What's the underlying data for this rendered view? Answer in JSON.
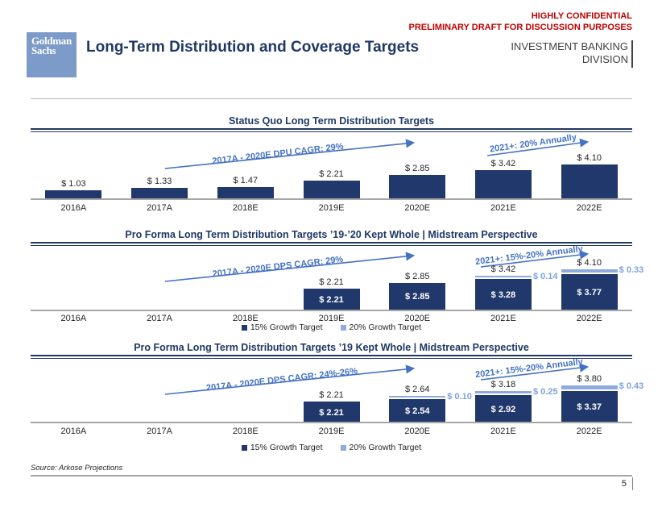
{
  "header": {
    "confidential_line1": "HIGHLY CONFIDENTIAL",
    "confidential_line2": "PRELIMINARY DRAFT FOR DISCUSSION PURPOSES",
    "logo_line1": "Goldman",
    "logo_line2": "Sachs",
    "title": "Long-Term Distribution and Coverage Targets",
    "division_line1": "INVESTMENT BANKING",
    "division_line2": "DIVISION"
  },
  "colors": {
    "navy": "#1F3864",
    "bar_dark": "#20386B",
    "bar_light": "#8FAADC",
    "annotation_blue": "#4472C4",
    "confidential_red": "#C00000",
    "logo_blue": "#7C9BC8",
    "axis_gray": "#A6A6A6"
  },
  "chart_data": [
    {
      "type": "bar",
      "title": "Status Quo Long Term Distribution Targets",
      "categories": [
        "2016A",
        "2017A",
        "2018E",
        "2019E",
        "2020E",
        "2021E",
        "2022E"
      ],
      "values": [
        1.03,
        1.33,
        1.47,
        2.21,
        2.85,
        3.42,
        4.1
      ],
      "value_labels": [
        "$ 1.03",
        "$ 1.33",
        "$ 1.47",
        "$ 2.21",
        "$ 2.85",
        "$ 3.42",
        "$ 4.10"
      ],
      "annotations": [
        "2017A - 2020E DPU CAGR: 29%",
        "2021+: 20% Annually"
      ],
      "xlabel": "",
      "ylabel": "",
      "ylim": [
        0,
        4.5
      ],
      "grid": false,
      "legend_position": "none"
    },
    {
      "type": "stacked-bar",
      "title": "Pro Forma Long Term Distribution Targets ’19-’20 Kept Whole | Midstream Perspective",
      "categories": [
        "2016A",
        "2017A",
        "2018E",
        "2019E",
        "2020E",
        "2021E",
        "2022E"
      ],
      "series": [
        {
          "name": "15% Growth Target",
          "values": [
            null,
            null,
            null,
            2.21,
            2.85,
            3.28,
            3.77
          ]
        },
        {
          "name": "20% Growth Target",
          "values": [
            null,
            null,
            null,
            0,
            0,
            0.14,
            0.33
          ]
        }
      ],
      "total_labels": [
        null,
        null,
        null,
        "$ 2.21",
        "$ 2.85",
        "$ 3.42",
        "$ 4.10"
      ],
      "inside_labels": [
        null,
        null,
        null,
        "$ 2.21",
        "$ 2.85",
        "$ 3.28",
        "$ 3.77"
      ],
      "cap_labels": [
        null,
        null,
        null,
        null,
        null,
        "$ 0.14",
        "$ 0.33"
      ],
      "annotations": [
        "2017A - 2020E DPS CAGR: 29%",
        "2021+: 15%-20% Annually"
      ],
      "xlabel": "",
      "ylabel": "",
      "ylim": [
        0,
        4.5
      ],
      "grid": false,
      "legend_position": "bottom"
    },
    {
      "type": "stacked-bar",
      "title": "Pro Forma Long Term Distribution Targets ’19 Kept Whole | Midstream Perspective",
      "categories": [
        "2016A",
        "2017A",
        "2018E",
        "2019E",
        "2020E",
        "2021E",
        "2022E"
      ],
      "series": [
        {
          "name": "15% Growth Target",
          "values": [
            null,
            null,
            null,
            2.21,
            2.54,
            2.92,
            3.37
          ]
        },
        {
          "name": "20% Growth Target",
          "values": [
            null,
            null,
            null,
            0,
            0.1,
            0.25,
            0.43
          ]
        }
      ],
      "total_labels": [
        null,
        null,
        null,
        "$ 2.21",
        "$ 2.64",
        "$ 3.18",
        "$ 3.80"
      ],
      "inside_labels": [
        null,
        null,
        null,
        "$ 2.21",
        "$ 2.54",
        "$ 2.92",
        "$ 3.37"
      ],
      "cap_labels": [
        null,
        null,
        null,
        null,
        "$ 0.10",
        "$ 0.25",
        "$ 0.43"
      ],
      "annotations": [
        "2017A - 2020E DPS CAGR: 24%-26%",
        "2021+: 15%-20% Annually"
      ],
      "xlabel": "",
      "ylabel": "",
      "ylim": [
        0,
        4.5
      ],
      "grid": false,
      "legend_position": "bottom"
    }
  ],
  "footer": {
    "source": "Source: Arkose Projections",
    "page": "5"
  }
}
